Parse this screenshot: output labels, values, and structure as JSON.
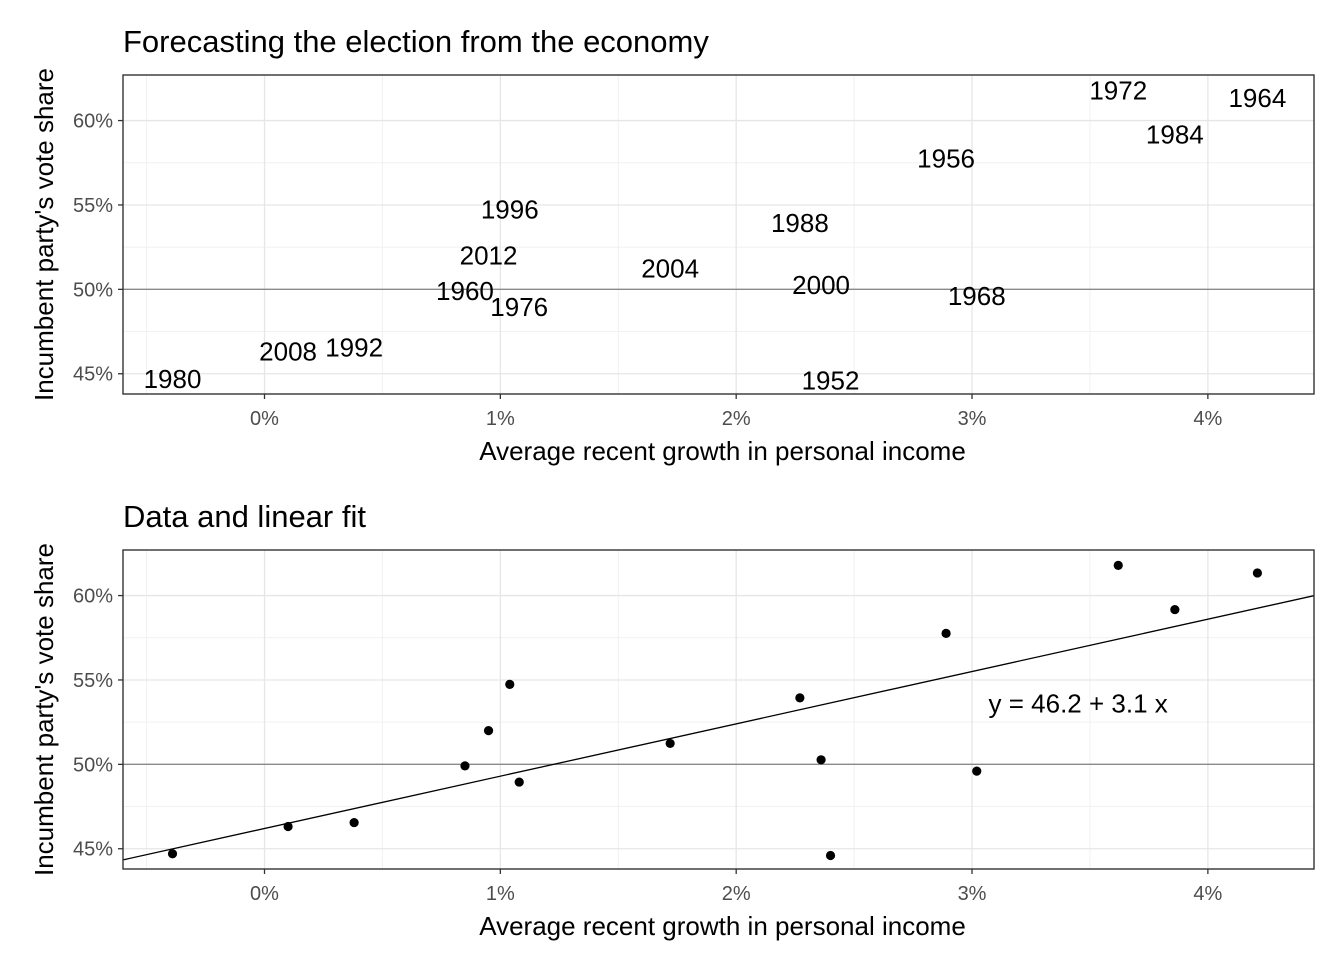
{
  "chart_data": [
    {
      "type": "scatter",
      "title": "Forecasting the election from the economy",
      "xlabel": "Average recent growth in personal income",
      "ylabel": "Incumbent party's vote share",
      "xlim": [
        -0.6,
        4.45
      ],
      "ylim": [
        43.8,
        62.7
      ],
      "x_ticks": [
        0,
        1,
        2,
        3,
        4
      ],
      "x_tick_labels": [
        "0%",
        "1%",
        "2%",
        "3%",
        "4%"
      ],
      "y_ticks": [
        45,
        50,
        55,
        60
      ],
      "y_tick_labels": [
        "45%",
        "50%",
        "55%",
        "60%"
      ],
      "reference_line_y": 50,
      "grid": true,
      "marker": "text",
      "points": [
        {
          "label": "1952",
          "x": 2.4,
          "y": 44.6
        },
        {
          "label": "1956",
          "x": 2.89,
          "y": 57.76
        },
        {
          "label": "1960",
          "x": 0.85,
          "y": 49.91
        },
        {
          "label": "1964",
          "x": 4.21,
          "y": 61.34
        },
        {
          "label": "1968",
          "x": 3.02,
          "y": 49.6
        },
        {
          "label": "1972",
          "x": 3.62,
          "y": 61.79
        },
        {
          "label": "1976",
          "x": 1.08,
          "y": 48.95
        },
        {
          "label": "1980",
          "x": -0.39,
          "y": 44.7
        },
        {
          "label": "1984",
          "x": 3.86,
          "y": 59.17
        },
        {
          "label": "1988",
          "x": 2.27,
          "y": 53.94
        },
        {
          "label": "1992",
          "x": 0.38,
          "y": 46.55
        },
        {
          "label": "1996",
          "x": 1.04,
          "y": 54.74
        },
        {
          "label": "2000",
          "x": 2.36,
          "y": 50.27
        },
        {
          "label": "2004",
          "x": 1.72,
          "y": 51.24
        },
        {
          "label": "2008",
          "x": 0.1,
          "y": 46.32
        },
        {
          "label": "2012",
          "x": 0.95,
          "y": 52.0
        }
      ]
    },
    {
      "type": "scatter",
      "title": "Data and linear fit",
      "xlabel": "Average recent growth in personal income",
      "ylabel": "Incumbent party's vote share",
      "xlim": [
        -0.6,
        4.45
      ],
      "ylim": [
        43.8,
        62.7
      ],
      "x_ticks": [
        0,
        1,
        2,
        3,
        4
      ],
      "x_tick_labels": [
        "0%",
        "1%",
        "2%",
        "3%",
        "4%"
      ],
      "y_ticks": [
        45,
        50,
        55,
        60
      ],
      "y_tick_labels": [
        "45%",
        "50%",
        "55%",
        "60%"
      ],
      "reference_line_y": 50,
      "grid": true,
      "marker": "dot",
      "fit": {
        "intercept": 46.2,
        "slope": 3.1
      },
      "fit_label": "y = 46.2 + 3.1 x",
      "fit_label_position": {
        "x": 3.45,
        "y": 53.6
      },
      "points": [
        {
          "x": 2.4,
          "y": 44.6
        },
        {
          "x": 2.89,
          "y": 57.76
        },
        {
          "x": 0.85,
          "y": 49.91
        },
        {
          "x": 4.21,
          "y": 61.34
        },
        {
          "x": 3.02,
          "y": 49.6
        },
        {
          "x": 3.62,
          "y": 61.79
        },
        {
          "x": 1.08,
          "y": 48.95
        },
        {
          "x": -0.39,
          "y": 44.7
        },
        {
          "x": 3.86,
          "y": 59.17
        },
        {
          "x": 2.27,
          "y": 53.94
        },
        {
          "x": 0.38,
          "y": 46.55
        },
        {
          "x": 1.04,
          "y": 54.74
        },
        {
          "x": 2.36,
          "y": 50.27
        },
        {
          "x": 1.72,
          "y": 51.24
        },
        {
          "x": 0.1,
          "y": 46.32
        },
        {
          "x": 0.95,
          "y": 52.0
        }
      ]
    }
  ]
}
